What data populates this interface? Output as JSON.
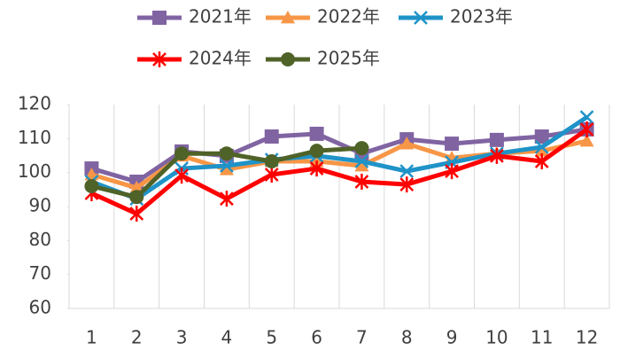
{
  "chart_data": {
    "type": "line",
    "categories": [
      "1",
      "2",
      "3",
      "4",
      "5",
      "6",
      "7",
      "8",
      "9",
      "10",
      "11",
      "12"
    ],
    "series": [
      {
        "name": "2021年",
        "color": "#8064a2",
        "marker": "square",
        "values": [
          101.2,
          97.3,
          106.2,
          104.9,
          110.6,
          111.4,
          105.6,
          109.8,
          108.5,
          109.6,
          110.6,
          112.7
        ]
      },
      {
        "name": "2022年",
        "color": "#f79646",
        "marker": "triangle",
        "values": [
          99.4,
          95.5,
          104.9,
          100.9,
          103.3,
          103.3,
          102,
          108.5,
          104.3,
          105.6,
          106.4,
          109.3
        ]
      },
      {
        "name": "2023年",
        "color": "#1f93c8",
        "marker": "x",
        "values": [
          97.3,
          92.3,
          101.2,
          102,
          103.8,
          104.9,
          103.3,
          100.4,
          103,
          105.6,
          107.5,
          116.3
        ]
      },
      {
        "name": "2024年",
        "color": "#ff0000",
        "marker": "star",
        "values": [
          93.9,
          87.9,
          99.1,
          92.3,
          99.4,
          101.2,
          97.3,
          96.5,
          100.4,
          104.9,
          103.3,
          112.7
        ]
      },
      {
        "name": "2025年",
        "color": "#4f6228",
        "marker": "circle",
        "values": [
          96,
          92.8,
          105.6,
          105.6,
          103.3,
          106.4,
          107.2,
          null,
          null,
          null,
          null,
          null
        ]
      }
    ],
    "ylim": [
      60,
      120
    ],
    "yticks": [
      60,
      70,
      80,
      90,
      100,
      110,
      120
    ],
    "grid": "vertical",
    "legend": "top"
  }
}
